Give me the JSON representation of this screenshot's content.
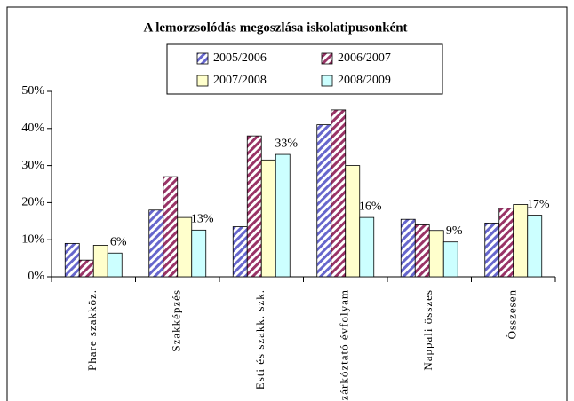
{
  "chart_data": {
    "type": "bar",
    "title": "A lemorzsolódás megoszlása iskolatipusonként",
    "categories": [
      "Phare szakköz.",
      "Szakképzés",
      "Esti és szakk. szk.",
      "Felzárkóztató évfolyam",
      "Nappali összes",
      "Összesen"
    ],
    "series": [
      {
        "name": "2005/2006",
        "color": "#6666cc",
        "pattern": "stripes",
        "values": [
          9,
          18,
          13.5,
          41,
          15.5,
          14.5
        ]
      },
      {
        "name": "2006/2007",
        "color": "#993366",
        "pattern": "stripes",
        "values": [
          4.5,
          27,
          38,
          45,
          14,
          18.5
        ]
      },
      {
        "name": "2007/2008",
        "color": "#ffffcc",
        "values": [
          8.5,
          16,
          31.5,
          30,
          12.5,
          19.5
        ]
      },
      {
        "name": "2008/2009",
        "color": "#ccffff",
        "values": [
          6.4,
          12.6,
          33,
          16,
          9.4,
          16.6
        ],
        "value_labels": [
          "6%",
          "13%",
          "33%",
          "16%",
          "9%",
          "17%"
        ]
      }
    ],
    "ylim": [
      0,
      50
    ],
    "yticks": [
      {
        "value": 0,
        "label": "0%"
      },
      {
        "value": 10,
        "label": "10%"
      },
      {
        "value": 20,
        "label": "20%"
      },
      {
        "value": 30,
        "label": "30%"
      },
      {
        "value": 40,
        "label": "40%"
      },
      {
        "value": 50,
        "label": "50%"
      }
    ],
    "grid": false
  }
}
